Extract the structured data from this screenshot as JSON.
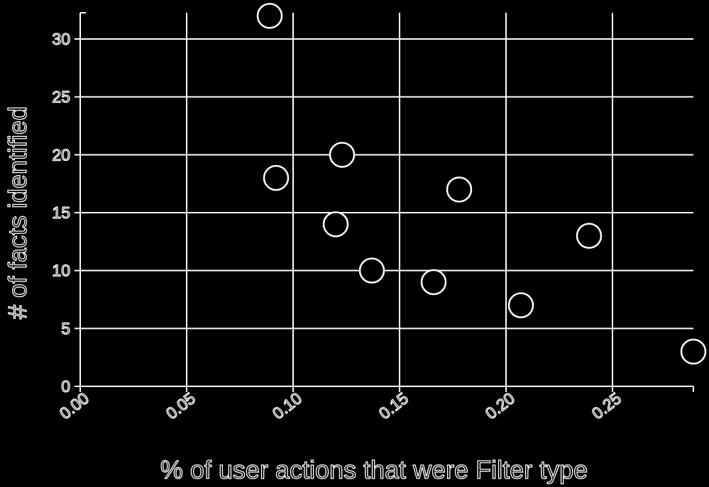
{
  "chart_data": {
    "type": "scatter",
    "title": "",
    "xlabel": "% of user actions that were Filter type",
    "ylabel": "# of facts identified",
    "x": [
      0.089,
      0.092,
      0.12,
      0.123,
      0.137,
      0.166,
      0.178,
      0.207,
      0.239,
      0.288
    ],
    "y": [
      32,
      18,
      14,
      20,
      10,
      9,
      17,
      7,
      13,
      3
    ],
    "xlim": [
      0.0,
      0.287
    ],
    "ylim": [
      0,
      30
    ],
    "xticks": [
      0.0,
      0.05,
      0.1,
      0.15,
      0.2,
      0.25
    ],
    "xtick_labels": [
      "0.00",
      "0.05",
      "0.10",
      "0.15",
      "0.20",
      "0.25"
    ],
    "yticks": [
      0,
      5,
      10,
      15,
      20,
      25,
      30
    ],
    "ytick_labels": [
      "0",
      "5",
      "10",
      "15",
      "20",
      "25",
      "30"
    ],
    "grid": true,
    "colors": {
      "background": "#000000",
      "foreground": "#ffffff"
    }
  }
}
